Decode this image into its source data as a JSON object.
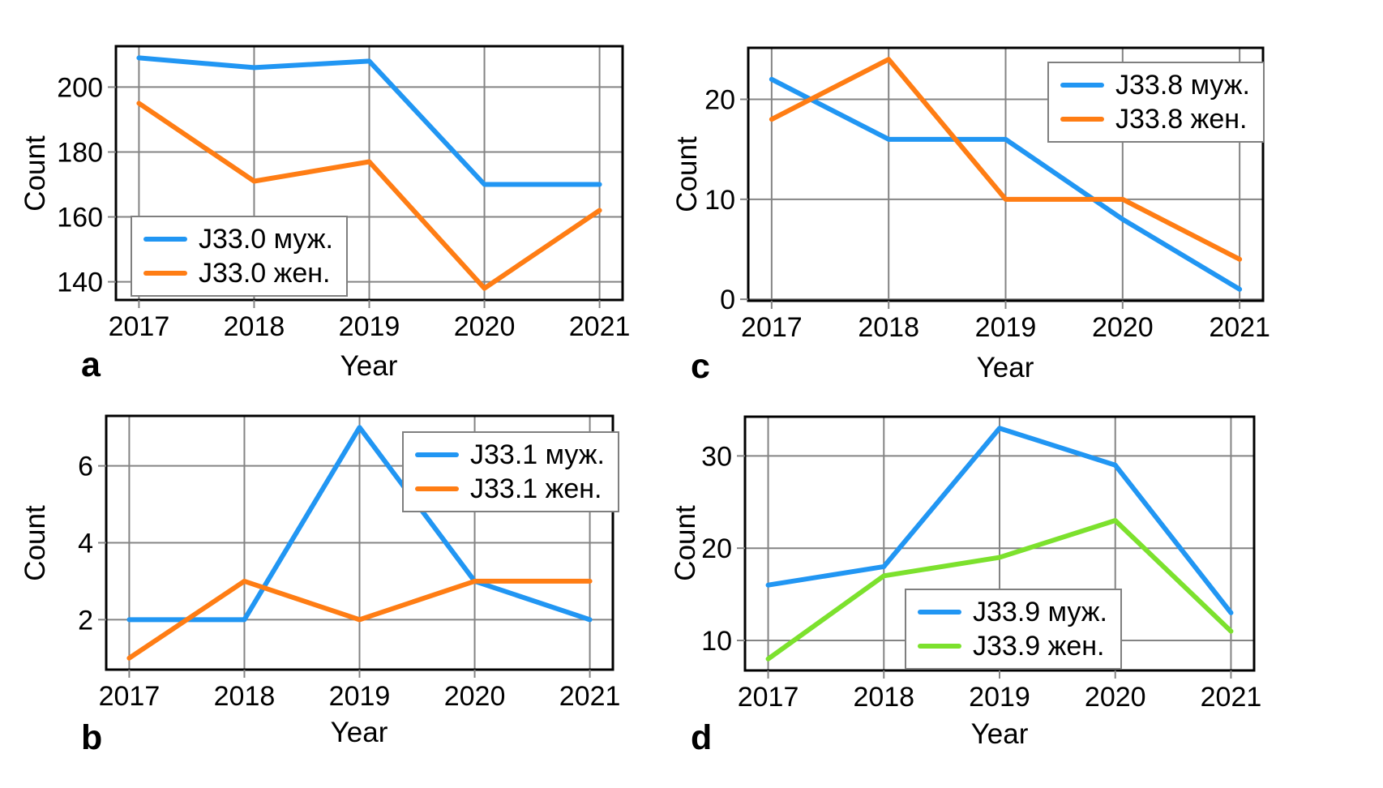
{
  "figure": {
    "xlabel": "Year",
    "ylabel": "Count",
    "years_label": [
      "2017",
      "2018",
      "2019",
      "2020",
      "2021"
    ]
  },
  "panel_letters": {
    "a": "a",
    "b": "b",
    "c": "c",
    "d": "d"
  },
  "colors": {
    "male_blue": "#2196F3",
    "female_orange": "#FF7D14",
    "female_green": "#7CE12D",
    "grid_gray": "#848484",
    "axis_black": "#000000"
  },
  "chart_data": [
    {
      "type": "line",
      "panel": "a",
      "title": "",
      "x": [
        2017,
        2018,
        2019,
        2020,
        2021
      ],
      "xlabel": "Year",
      "ylabel": "Count",
      "xticks": [
        2017,
        2018,
        2019,
        2020,
        2021
      ],
      "yticks": [
        140,
        160,
        180,
        200
      ],
      "xlim": [
        2016.8,
        2021.2
      ],
      "ylim": [
        134.4,
        212.6
      ],
      "grid": true,
      "legend_position": "lower left",
      "series": [
        {
          "name": "J33.0 муж.",
          "color": "#2196F3",
          "values": [
            209,
            206,
            208,
            170,
            170
          ]
        },
        {
          "name": "J33.0 жен.",
          "color": "#FF7D14",
          "values": [
            195,
            171,
            177,
            138,
            162
          ]
        }
      ]
    },
    {
      "type": "line",
      "panel": "b",
      "title": "",
      "x": [
        2017,
        2018,
        2019,
        2020,
        2021
      ],
      "xlabel": "Year",
      "ylabel": "Count",
      "xticks": [
        2017,
        2018,
        2019,
        2020,
        2021
      ],
      "yticks": [
        2,
        4,
        6
      ],
      "xlim": [
        2016.8,
        2021.2
      ],
      "ylim": [
        0.7,
        7.3
      ],
      "grid": true,
      "legend_position": "upper right",
      "series": [
        {
          "name": "J33.1 муж.",
          "color": "#2196F3",
          "values": [
            2,
            2,
            7,
            3,
            2
          ]
        },
        {
          "name": "J33.1 жен.",
          "color": "#FF7D14",
          "values": [
            1,
            3,
            2,
            3,
            3
          ]
        }
      ]
    },
    {
      "type": "line",
      "panel": "c",
      "title": "",
      "x": [
        2017,
        2018,
        2019,
        2020,
        2021
      ],
      "xlabel": "Year",
      "ylabel": "Count",
      "xticks": [
        2017,
        2018,
        2019,
        2020,
        2021
      ],
      "yticks": [
        0,
        10,
        20
      ],
      "xlim": [
        2016.8,
        2021.2
      ],
      "ylim": [
        -0.15,
        25.15
      ],
      "grid": true,
      "legend_position": "upper right",
      "series": [
        {
          "name": "J33.8 муж.",
          "color": "#2196F3",
          "values": [
            22,
            16,
            16,
            8,
            1
          ]
        },
        {
          "name": "J33.8 жен.",
          "color": "#FF7D14",
          "values": [
            18,
            24,
            10,
            10,
            4
          ]
        }
      ]
    },
    {
      "type": "line",
      "panel": "d",
      "title": "",
      "x": [
        2017,
        2018,
        2019,
        2020,
        2021
      ],
      "xlabel": "Year",
      "ylabel": "Count",
      "xticks": [
        2017,
        2018,
        2019,
        2020,
        2021
      ],
      "yticks": [
        10,
        20,
        30
      ],
      "xlim": [
        2016.8,
        2021.2
      ],
      "ylim": [
        6.75,
        34.25
      ],
      "grid": true,
      "legend_position": "lower center",
      "series": [
        {
          "name": "J33.9 муж.",
          "color": "#2196F3",
          "values": [
            16,
            18,
            33,
            29,
            13
          ]
        },
        {
          "name": "J33.9 жен.",
          "color": "#7CE12D",
          "values": [
            8,
            17,
            19,
            23,
            11
          ]
        }
      ]
    }
  ]
}
